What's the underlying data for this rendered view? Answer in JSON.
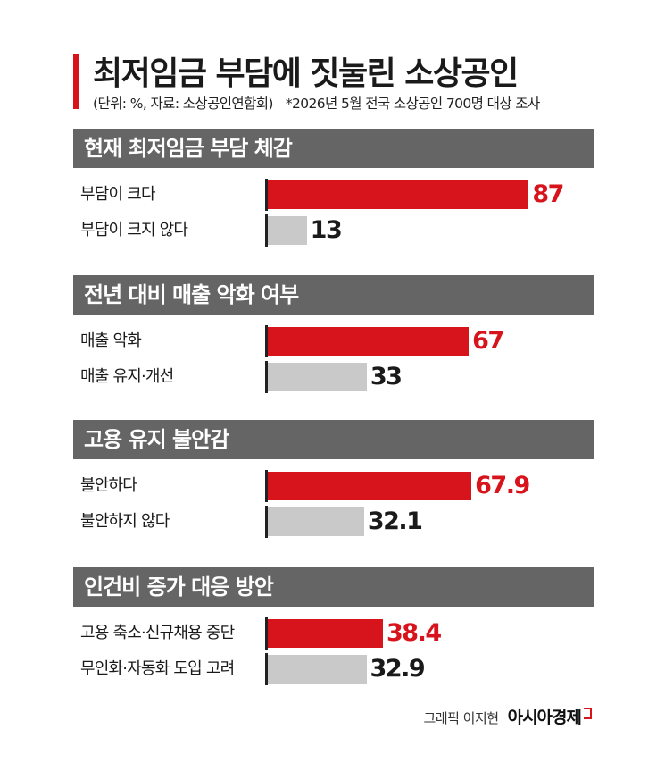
{
  "title": "최저임금 부담에 짓눌린 소상공인",
  "subtitle": "(단위: %, 자료: 소상공인연합회)",
  "note": "*2026년 5월 전국 소상공인 700명 대상 조사",
  "colors": {
    "highlight": "#d7141b",
    "neutral": "#c9c9c9",
    "header": "#656565",
    "value_dark": "#1a1a1a"
  },
  "chart_data": [
    {
      "type": "bar",
      "title": "현재 최저임금 부담 체감",
      "categories": [
        "부담이 크다",
        "부담이 크지 않다"
      ],
      "values": [
        87,
        13
      ],
      "value_labels": [
        "87",
        "13"
      ],
      "xlim": [
        0,
        100
      ]
    },
    {
      "type": "bar",
      "title": "전년 대비 매출 악화 여부",
      "categories": [
        "매출 악화",
        "매출 유지·개선"
      ],
      "values": [
        67,
        33
      ],
      "value_labels": [
        "67",
        "33"
      ],
      "xlim": [
        0,
        100
      ]
    },
    {
      "type": "bar",
      "title": "고용 유지 불안감",
      "categories": [
        "불안하다",
        "불안하지 않다"
      ],
      "values": [
        67.9,
        32.1
      ],
      "value_labels": [
        "67.9",
        "32.1"
      ],
      "xlim": [
        0,
        100
      ]
    },
    {
      "type": "bar",
      "title": "인건비 증가 대응 방안",
      "categories": [
        "고용 축소·신규채용 중단",
        "무인화·자동화 도입 고려"
      ],
      "values": [
        38.4,
        32.9
      ],
      "value_labels": [
        "38.4",
        "32.9"
      ],
      "xlim": [
        0,
        100
      ]
    }
  ],
  "credit": "그래픽 이지현",
  "brand": "아시아경제",
  "brand_icon": "brand-corner-mark"
}
